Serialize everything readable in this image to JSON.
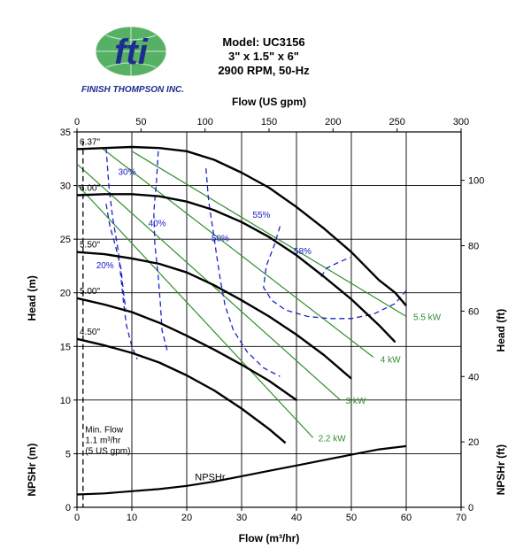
{
  "logo": {
    "mark": "fti",
    "name": "FINISH THOMPSON INC.",
    "colors": {
      "blue": "#1d2d8f",
      "green": "#3aa34a"
    }
  },
  "header": {
    "line1": "Model: UC3156",
    "line2": "3\" x 1.5\" x 6\"",
    "line3": "2900 RPM, 50-Hz"
  },
  "chart_data": {
    "type": "line",
    "top_axis": {
      "label": "Flow (US gpm)",
      "range": [
        0,
        300
      ],
      "ticks": [
        "0",
        "50",
        "100",
        "150",
        "200",
        "250",
        "300"
      ]
    },
    "bottom_axis": {
      "label": "Flow (m³/hr)",
      "range": [
        0,
        70
      ],
      "ticks": [
        "0",
        "10",
        "20",
        "30",
        "40",
        "50",
        "60",
        "70"
      ]
    },
    "left_axis": {
      "label": "Head (m)",
      "range": [
        0,
        35
      ],
      "ticks": [
        "0",
        "5",
        "10",
        "15",
        "20",
        "25",
        "30",
        "35"
      ]
    },
    "right_axis": {
      "label": "Head (ft)",
      "range": [
        0,
        114.8
      ],
      "ticks": [
        "0",
        "20",
        "40",
        "60",
        "80",
        "100"
      ]
    },
    "left_npsh_label": "NPSHr (m)",
    "right_npsh_label": "NPSHr (ft)",
    "grid": true,
    "impeller_curves": [
      {
        "label": "6.37\"",
        "points": [
          [
            0,
            33.4
          ],
          [
            5,
            33.5
          ],
          [
            10,
            33.6
          ],
          [
            15,
            33.5
          ],
          [
            20,
            33.2
          ],
          [
            25,
            32.4
          ],
          [
            30,
            31.2
          ],
          [
            35,
            29.8
          ],
          [
            40,
            28.0
          ],
          [
            45,
            26.0
          ],
          [
            50,
            23.8
          ],
          [
            55,
            21.2
          ],
          [
            58,
            20.0
          ],
          [
            60,
            18.8
          ]
        ]
      },
      {
        "label": "6.00\"",
        "points": [
          [
            0,
            29.1
          ],
          [
            5,
            29.2
          ],
          [
            10,
            29.2
          ],
          [
            15,
            29.0
          ],
          [
            20,
            28.5
          ],
          [
            25,
            27.7
          ],
          [
            30,
            26.6
          ],
          [
            35,
            25.2
          ],
          [
            40,
            23.5
          ],
          [
            45,
            21.5
          ],
          [
            50,
            19.4
          ],
          [
            55,
            17.0
          ],
          [
            58,
            15.4
          ]
        ]
      },
      {
        "label": "5.50\"",
        "points": [
          [
            0,
            23.8
          ],
          [
            5,
            23.6
          ],
          [
            10,
            23.2
          ],
          [
            15,
            22.7
          ],
          [
            20,
            21.9
          ],
          [
            25,
            20.7
          ],
          [
            30,
            19.3
          ],
          [
            35,
            17.8
          ],
          [
            40,
            16.1
          ],
          [
            45,
            14.2
          ],
          [
            50,
            12.0
          ]
        ]
      },
      {
        "label": "5.00\"",
        "points": [
          [
            0,
            19.5
          ],
          [
            5,
            18.9
          ],
          [
            10,
            18.2
          ],
          [
            15,
            17.2
          ],
          [
            20,
            16.0
          ],
          [
            25,
            14.7
          ],
          [
            30,
            13.3
          ],
          [
            35,
            11.8
          ],
          [
            40,
            10.0
          ]
        ]
      },
      {
        "label": "4.50\"",
        "points": [
          [
            0,
            15.7
          ],
          [
            5,
            15.1
          ],
          [
            10,
            14.4
          ],
          [
            15,
            13.5
          ],
          [
            20,
            12.3
          ],
          [
            25,
            10.9
          ],
          [
            30,
            9.2
          ],
          [
            35,
            7.3
          ],
          [
            38,
            6.0
          ]
        ]
      }
    ],
    "efficiency_curves": [
      {
        "label": "20%",
        "points": [
          [
            5.3,
            28.3
          ],
          [
            6.0,
            26.2
          ],
          [
            7.0,
            24.4
          ],
          [
            8.0,
            22.3
          ],
          [
            8.6,
            19.5
          ],
          [
            8.9,
            18.5
          ]
        ]
      },
      {
        "label": "30%",
        "points": [
          [
            5.3,
            33.5
          ],
          [
            5.8,
            30.0
          ],
          [
            6.5,
            27.0
          ],
          [
            7.5,
            24.0
          ],
          [
            8.0,
            21.5
          ],
          [
            8.5,
            19.0
          ],
          [
            9.0,
            17.0
          ],
          [
            10.0,
            15.0
          ],
          [
            11.0,
            13.8
          ]
        ]
      },
      {
        "label": "40%",
        "points": [
          [
            14.8,
            33.2
          ],
          [
            14.5,
            30.5
          ],
          [
            14.0,
            27.5
          ],
          [
            14.2,
            24.5
          ],
          [
            14.8,
            21.5
          ],
          [
            15.2,
            19.0
          ],
          [
            15.5,
            16.5
          ],
          [
            16.5,
            14.5
          ]
        ]
      },
      {
        "label": "50%",
        "points": [
          [
            23.5,
            31.6
          ],
          [
            24.0,
            28.5
          ],
          [
            24.8,
            25.8
          ],
          [
            25.5,
            23.3
          ],
          [
            26.2,
            21.0
          ],
          [
            27.0,
            18.8
          ],
          [
            28.5,
            16.5
          ],
          [
            31.0,
            14.5
          ],
          [
            34.0,
            13.0
          ],
          [
            37.0,
            12.2
          ]
        ]
      },
      {
        "label": "55%",
        "points": [
          [
            37.0,
            26.2
          ],
          [
            36.0,
            24.5
          ],
          [
            34.5,
            22.5
          ],
          [
            34.0,
            20.5
          ],
          [
            35.5,
            19.3
          ],
          [
            38.0,
            18.4
          ],
          [
            42.0,
            17.8
          ],
          [
            46.0,
            17.6
          ],
          [
            50.0,
            17.6
          ],
          [
            54.0,
            18.0
          ],
          [
            58.0,
            19.0
          ],
          [
            60.0,
            20.2
          ]
        ]
      },
      {
        "label": "58%",
        "points": [
          [
            44.5,
            21.5
          ],
          [
            45.5,
            22.3
          ],
          [
            47.5,
            22.8
          ],
          [
            49.8,
            23.3
          ]
        ]
      }
    ],
    "power_lines": [
      {
        "label": "2.2 kW",
        "from": [
          0,
          30.1
        ],
        "to": [
          43.0,
          6.5
        ]
      },
      {
        "label": "3 kW",
        "from": [
          0,
          32.0
        ],
        "to": [
          48.0,
          10.0
        ]
      },
      {
        "label": "4 kW",
        "from": [
          4.5,
          33.5
        ],
        "to": [
          54.0,
          14.0
        ]
      },
      {
        "label": "5.5 kW",
        "from": [
          10.0,
          33.2
        ],
        "to": [
          60.0,
          17.8
        ]
      }
    ],
    "npsh_curve": {
      "label": "NPSHr",
      "points": [
        [
          0,
          1.2
        ],
        [
          5,
          1.3
        ],
        [
          10,
          1.5
        ],
        [
          15,
          1.7
        ],
        [
          20,
          2.0
        ],
        [
          25,
          2.4
        ],
        [
          30,
          2.9
        ],
        [
          35,
          3.4
        ],
        [
          40,
          3.9
        ],
        [
          45,
          4.4
        ],
        [
          50,
          4.9
        ],
        [
          55,
          5.4
        ],
        [
          60,
          5.7
        ]
      ]
    },
    "min_flow": {
      "label_lines": [
        "Min. Flow",
        "1.1 m³/hr",
        "(5 US gpm)"
      ],
      "x": 1.1
    },
    "colors": {
      "impeller": "#000000",
      "efficiency": "#1a22c8",
      "power": "#2f8f2f",
      "grid": "#000000"
    }
  }
}
